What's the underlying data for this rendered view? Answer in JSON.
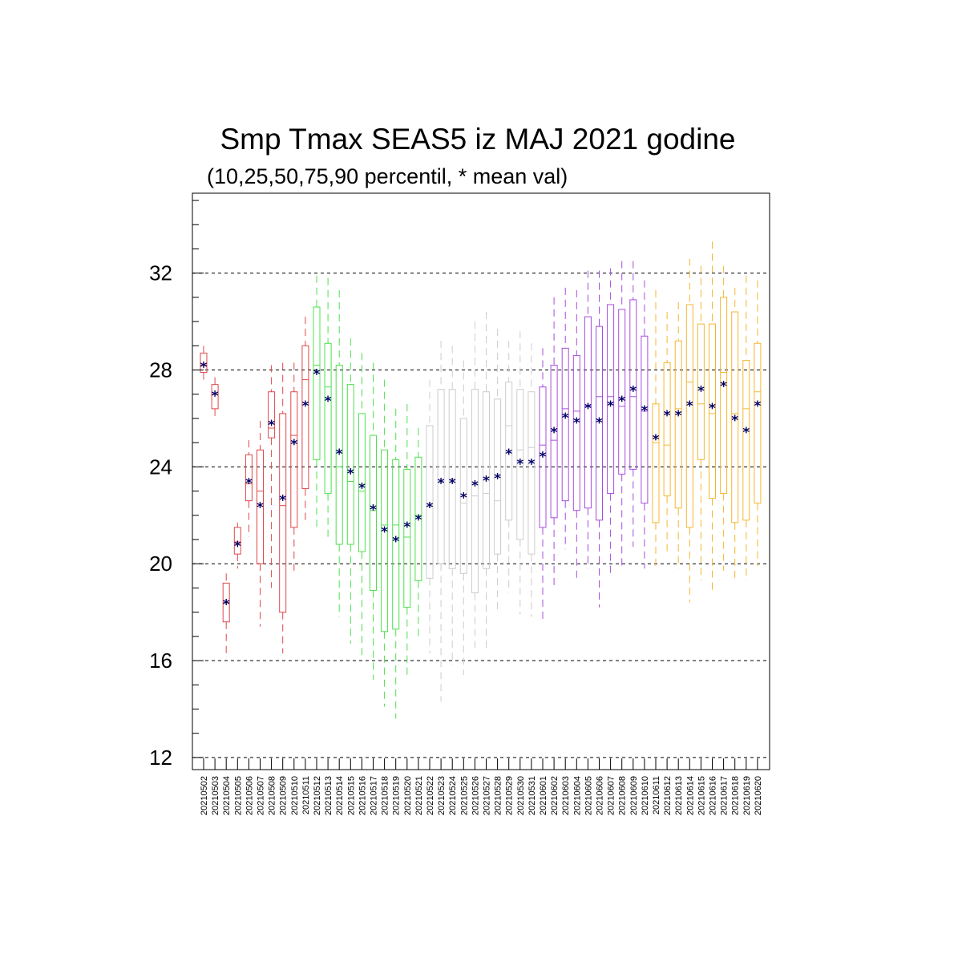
{
  "chart_data": {
    "type": "boxplot",
    "title": "Smp Tmax SEAS5 iz MAJ 2021 godine",
    "subtitle": "(10,25,50,75,90 percentil, * mean val)",
    "ylim": [
      11.5,
      35.3
    ],
    "yticks": [
      12,
      16,
      20,
      24,
      28,
      32
    ],
    "grid": "horizontal dashed at major ticks",
    "mean_marker": "*",
    "colors": {
      "month_may_early": "#e0474c",
      "month_may_mid": "#4de04d",
      "month_may_late": "#cccccc",
      "month_june_early": "#a64de0",
      "month_june_late": "#f5b731",
      "mean": "#000066"
    },
    "categories": [
      "20210502",
      "20210503",
      "20210504",
      "20210505",
      "20210506",
      "20210507",
      "20210508",
      "20210509",
      "20210510",
      "20210511",
      "20210512",
      "20210513",
      "20210514",
      "20210515",
      "20210516",
      "20210517",
      "20210518",
      "20210519",
      "20210520",
      "20210521",
      "20210522",
      "20210523",
      "20210524",
      "20210525",
      "20210526",
      "20210527",
      "20210528",
      "20210529",
      "20210530",
      "20210531",
      "20210601",
      "20210602",
      "20210603",
      "20210604",
      "20210605",
      "20210606",
      "20210607",
      "20210608",
      "20210609",
      "20210610",
      "20210611",
      "20210612",
      "20210613",
      "20210614",
      "20210615",
      "20210616",
      "20210617",
      "20210618",
      "20210619",
      "20210620"
    ],
    "color_group": [
      "month_may_early",
      "month_may_early",
      "month_may_early",
      "month_may_early",
      "month_may_early",
      "month_may_early",
      "month_may_early",
      "month_may_early",
      "month_may_early",
      "month_may_early",
      "month_may_mid",
      "month_may_mid",
      "month_may_mid",
      "month_may_mid",
      "month_may_mid",
      "month_may_mid",
      "month_may_mid",
      "month_may_mid",
      "month_may_mid",
      "month_may_mid",
      "month_may_late",
      "month_may_late",
      "month_may_late",
      "month_may_late",
      "month_may_late",
      "month_may_late",
      "month_may_late",
      "month_may_late",
      "month_may_late",
      "month_may_late",
      "month_june_early",
      "month_june_early",
      "month_june_early",
      "month_june_early",
      "month_june_early",
      "month_june_early",
      "month_june_early",
      "month_june_early",
      "month_june_early",
      "month_june_early",
      "month_june_late",
      "month_june_late",
      "month_june_late",
      "month_june_late",
      "month_june_late",
      "month_june_late",
      "month_june_late",
      "month_june_late",
      "month_june_late",
      "month_june_late"
    ],
    "p10": [
      27.5,
      25.9,
      16.1,
      19.8,
      21.1,
      17.4,
      19.0,
      16.3,
      19.7,
      21.8,
      21.4,
      21.1,
      17.8,
      16.7,
      16.2,
      15.2,
      14.1,
      13.6,
      15.3,
      17.0,
      16.3,
      14.3,
      15.8,
      15.4,
      16.4,
      16.4,
      18.0,
      18.8,
      17.9,
      17.8,
      17.6,
      19.0,
      20.6,
      19.3,
      19.8,
      18.2,
      19.5,
      19.8,
      20.7,
      19.8,
      19.8,
      20.4,
      19.8,
      18.4,
      19.3,
      18.8,
      19.7,
      19.3,
      19.3,
      19.9
    ],
    "p25": [
      27.9,
      26.4,
      17.6,
      20.4,
      22.6,
      20.0,
      25.2,
      18.0,
      21.5,
      23.1,
      24.3,
      22.9,
      20.8,
      20.8,
      20.5,
      18.9,
      17.2,
      17.3,
      18.2,
      19.3,
      19.4,
      20.0,
      19.8,
      19.6,
      18.8,
      19.8,
      20.4,
      21.8,
      21.0,
      20.4,
      21.5,
      21.9,
      22.6,
      22.2,
      22.3,
      21.8,
      22.9,
      23.7,
      23.9,
      22.5,
      21.7,
      22.8,
      22.3,
      21.5,
      24.3,
      22.7,
      22.9,
      21.7,
      21.8,
      22.5
    ],
    "p50": [
      28.2,
      27.0,
      18.4,
      20.9,
      23.3,
      23.0,
      25.6,
      22.4,
      25.3,
      27.6,
      28.2,
      27.3,
      24.0,
      23.4,
      23.0,
      22.2,
      21.6,
      21.6,
      21.1,
      22.0,
      22.4,
      23.4,
      23.5,
      22.5,
      22.8,
      22.9,
      22.6,
      25.7,
      24.7,
      24.8,
      24.9,
      25.1,
      26.4,
      26.3,
      26.5,
      26.9,
      26.9,
      26.5,
      26.9,
      26.3,
      25.0,
      24.9,
      26.4,
      27.5,
      26.6,
      26.2,
      27.9,
      26.2,
      26.4,
      27.1
    ],
    "p75": [
      28.7,
      27.4,
      19.2,
      21.5,
      24.5,
      24.7,
      27.1,
      26.2,
      27.1,
      29.0,
      30.6,
      29.1,
      28.2,
      27.4,
      26.2,
      25.3,
      24.7,
      24.3,
      23.9,
      24.4,
      25.7,
      27.2,
      27.2,
      26.0,
      27.2,
      27.1,
      26.8,
      27.5,
      27.2,
      27.1,
      27.3,
      28.2,
      28.9,
      28.6,
      30.2,
      29.8,
      30.7,
      30.5,
      30.9,
      29.4,
      26.6,
      28.3,
      29.2,
      30.7,
      29.9,
      29.9,
      31.0,
      30.4,
      28.4,
      29.1
    ],
    "p90": [
      29.0,
      27.7,
      19.6,
      21.7,
      25.1,
      25.9,
      28.2,
      28.3,
      28.3,
      30.2,
      31.9,
      31.8,
      31.3,
      29.3,
      28.7,
      28.3,
      27.6,
      26.4,
      26.6,
      25.6,
      27.6,
      29.2,
      29.0,
      28.4,
      30.0,
      30.4,
      29.7,
      29.2,
      29.6,
      29.1,
      28.9,
      31.0,
      31.4,
      31.3,
      32.1,
      32.1,
      32.2,
      32.5,
      32.5,
      31.7,
      31.3,
      30.4,
      30.8,
      32.6,
      32.3,
      33.3,
      32.3,
      31.4,
      31.9,
      31.7
    ],
    "mean": [
      28.2,
      27.0,
      18.4,
      20.8,
      23.4,
      22.4,
      25.8,
      22.7,
      25.0,
      26.6,
      27.9,
      26.8,
      24.6,
      23.8,
      23.2,
      22.3,
      21.4,
      21.0,
      21.6,
      21.9,
      22.4,
      23.4,
      23.4,
      22.8,
      23.3,
      23.5,
      23.6,
      24.6,
      24.2,
      24.2,
      24.5,
      25.5,
      26.1,
      25.9,
      26.5,
      25.9,
      26.6,
      26.8,
      27.2,
      26.4,
      25.2,
      26.2,
      26.2,
      26.6,
      27.2,
      26.5,
      27.4,
      26.0,
      25.5,
      26.6
    ]
  }
}
